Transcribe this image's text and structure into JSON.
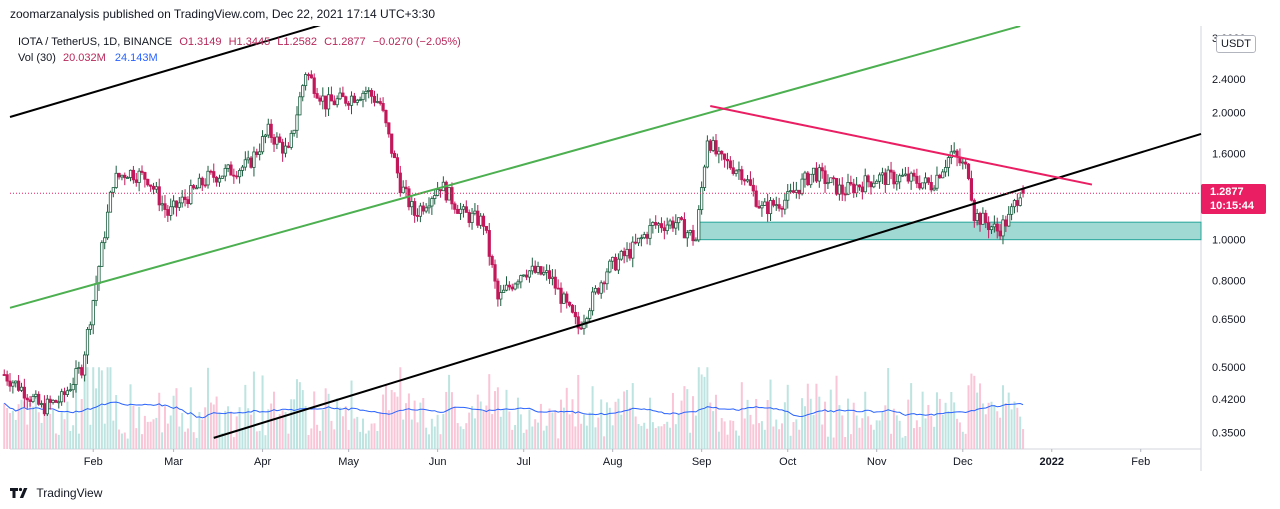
{
  "header": {
    "publisher_line": "zoomarzanalysis published on TradingView.com, Dec 22, 2021 17:14 UTC+3:30"
  },
  "legend": {
    "symbol": "IOTA / TetherUS, 1D, BINANCE",
    "open_label": "O1.3149",
    "high_label": "H1.3445",
    "low_label": "L1.2582",
    "close_label": "C1.2877",
    "change_label": "−0.0270 (−2.05%)",
    "volume_label": "Vol (30)",
    "volume_value": "20.032M",
    "volume_ma_value": "24.143M"
  },
  "currency_badge": "USDT",
  "price_badge": {
    "price": "1.2877",
    "countdown": "10:15:44"
  },
  "footer": {
    "logo_text": "TradingView",
    "logo_icon": "tradingview-logo-icon"
  },
  "colors": {
    "up": "#26a69a",
    "down": "#ef5350",
    "candle_up": "#1b5e3f",
    "candle_down": "#c2185b",
    "channel_upper": "#000000",
    "channel_lower": "#000000",
    "green_line": "#4caf50",
    "pink_line": "#e91e63",
    "zone_fill": "#80cbc4",
    "zone_border": "#26a69a",
    "volume_ma": "#2962ff",
    "last_price": "#e91e63"
  },
  "chart_data": {
    "type": "candlestick",
    "scale": "log",
    "y_ticks": [
      "3.0000",
      "2.4000",
      "2.0000",
      "1.6000",
      "1.2877",
      "1.0000",
      "0.8000",
      "0.6500",
      "0.5000",
      "0.4200",
      "0.3500"
    ],
    "y_range": [
      0.32,
      3.2
    ],
    "x_ticks": [
      "Feb",
      "Mar",
      "Apr",
      "May",
      "Jun",
      "Jul",
      "Aug",
      "Sep",
      "Oct",
      "Nov",
      "Dec",
      "2022",
      "Feb"
    ],
    "x_tick_dates": [
      "2021-02-01",
      "2021-03-01",
      "2021-04-01",
      "2021-05-01",
      "2021-06-01",
      "2021-07-01",
      "2021-08-01",
      "2021-09-01",
      "2021-10-01",
      "2021-11-01",
      "2021-12-01",
      "2022-01-01",
      "2022-02-01"
    ],
    "x_range": [
      "2021-01-03",
      "2022-02-22"
    ],
    "grid": false,
    "last_price": 1.2877,
    "anchor_closes": [
      {
        "date": "2021-01-01",
        "value": 0.48
      },
      {
        "date": "2021-01-08",
        "value": 0.44
      },
      {
        "date": "2021-01-14",
        "value": 0.4
      },
      {
        "date": "2021-01-21",
        "value": 0.42
      },
      {
        "date": "2021-01-28",
        "value": 0.5
      },
      {
        "date": "2021-02-04",
        "value": 0.95
      },
      {
        "date": "2021-02-08",
        "value": 1.38
      },
      {
        "date": "2021-02-13",
        "value": 1.45
      },
      {
        "date": "2021-02-20",
        "value": 1.4
      },
      {
        "date": "2021-02-27",
        "value": 1.15
      },
      {
        "date": "2021-03-05",
        "value": 1.25
      },
      {
        "date": "2021-03-13",
        "value": 1.4
      },
      {
        "date": "2021-03-20",
        "value": 1.45
      },
      {
        "date": "2021-03-27",
        "value": 1.5
      },
      {
        "date": "2021-04-03",
        "value": 1.8
      },
      {
        "date": "2021-04-10",
        "value": 1.6
      },
      {
        "date": "2021-04-16",
        "value": 2.5
      },
      {
        "date": "2021-04-23",
        "value": 2.1
      },
      {
        "date": "2021-04-30",
        "value": 2.15
      },
      {
        "date": "2021-05-07",
        "value": 2.25
      },
      {
        "date": "2021-05-12",
        "value": 2.1
      },
      {
        "date": "2021-05-19",
        "value": 1.35
      },
      {
        "date": "2021-05-24",
        "value": 1.15
      },
      {
        "date": "2021-06-02",
        "value": 1.35
      },
      {
        "date": "2021-06-10",
        "value": 1.15
      },
      {
        "date": "2021-06-17",
        "value": 1.1
      },
      {
        "date": "2021-06-22",
        "value": 0.72
      },
      {
        "date": "2021-07-01",
        "value": 0.85
      },
      {
        "date": "2021-07-10",
        "value": 0.82
      },
      {
        "date": "2021-07-20",
        "value": 0.62
      },
      {
        "date": "2021-07-30",
        "value": 0.85
      },
      {
        "date": "2021-08-08",
        "value": 0.95
      },
      {
        "date": "2021-08-15",
        "value": 1.08
      },
      {
        "date": "2021-08-23",
        "value": 1.1
      },
      {
        "date": "2021-08-30",
        "value": 1.0
      },
      {
        "date": "2021-09-03",
        "value": 1.75
      },
      {
        "date": "2021-09-07",
        "value": 1.55
      },
      {
        "date": "2021-09-15",
        "value": 1.45
      },
      {
        "date": "2021-09-22",
        "value": 1.18
      },
      {
        "date": "2021-10-01",
        "value": 1.25
      },
      {
        "date": "2021-10-10",
        "value": 1.45
      },
      {
        "date": "2021-10-20",
        "value": 1.3
      },
      {
        "date": "2021-11-01",
        "value": 1.4
      },
      {
        "date": "2021-11-10",
        "value": 1.4
      },
      {
        "date": "2021-11-20",
        "value": 1.35
      },
      {
        "date": "2021-11-27",
        "value": 1.6
      },
      {
        "date": "2021-12-03",
        "value": 1.45
      },
      {
        "date": "2021-12-05",
        "value": 1.15
      },
      {
        "date": "2021-12-13",
        "value": 1.05
      },
      {
        "date": "2021-12-17",
        "value": 1.12
      },
      {
        "date": "2021-12-21",
        "value": 1.31
      },
      {
        "date": "2021-12-22",
        "value": 1.2877
      }
    ],
    "volume_scale": "relative",
    "trendlines": [
      {
        "name": "upper-channel",
        "color": "#000000",
        "points": [
          {
            "date": "2021-01-03",
            "value": 1.95
          },
          {
            "date": "2021-04-30",
            "value": 3.35
          }
        ]
      },
      {
        "name": "lower-channel",
        "color": "#000000",
        "points": [
          {
            "date": "2021-03-15",
            "value": 0.34
          },
          {
            "date": "2022-01-31",
            "value": 1.6
          }
        ]
      },
      {
        "name": "green-line",
        "color": "#4caf50",
        "points": [
          {
            "date": "2021-01-03",
            "value": 0.69
          },
          {
            "date": "2021-12-21",
            "value": 3.2
          }
        ]
      },
      {
        "name": "pink-line",
        "color": "#e91e63",
        "points": [
          {
            "date": "2021-09-04",
            "value": 2.07
          },
          {
            "date": "2022-01-15",
            "value": 1.35
          }
        ]
      }
    ],
    "zone": {
      "from_date": "2021-08-31",
      "to_date": "2022-02-22",
      "low": 1.0,
      "high": 1.1
    }
  }
}
